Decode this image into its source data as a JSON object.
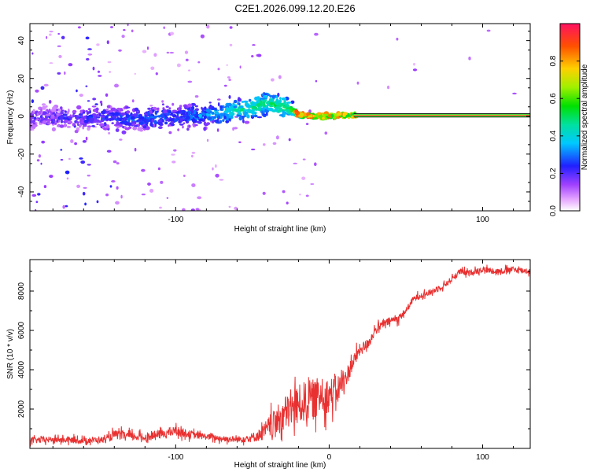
{
  "title": "C2E1.2026.099.12.20.E26",
  "chart_data": [
    {
      "type": "heatmap",
      "xlabel": "Height of straight line (km)",
      "ylabel": "Frequency (Hz)",
      "xlim": [
        -195,
        131
      ],
      "ylim": [
        -50,
        49
      ],
      "xticks": [
        -100,
        0,
        100
      ],
      "xtick_labels": [
        "-100",
        "",
        "100"
      ],
      "yticks": [
        -40,
        -20,
        0,
        20,
        40
      ],
      "ytick_labels": [
        "-40",
        "-20",
        "0",
        "20",
        "40"
      ],
      "colorbar": {
        "label": "Normalized spectral amplitude",
        "range": [
          0,
          1
        ],
        "ticks": [
          0.0,
          0.2,
          0.4,
          0.6,
          0.8
        ],
        "tick_labels": [
          "0.0",
          "0.2",
          "0.4",
          "0.6",
          "0.8"
        ]
      },
      "trace": {
        "description_points_x": [
          -195,
          -160,
          -120,
          -100,
          -80,
          -60,
          -40,
          -25,
          -20,
          -10,
          0,
          10,
          20,
          60,
          100,
          131
        ],
        "center_frequency": [
          -1,
          -1,
          -1,
          0,
          1,
          3,
          7,
          4,
          1,
          0,
          0,
          0.5,
          0.5,
          0.5,
          0.5,
          0.5
        ],
        "spread_hz": [
          4,
          4,
          4,
          4,
          4,
          4,
          4,
          3,
          1,
          1,
          1,
          0.5,
          0.5,
          0.5,
          0.5,
          0.5
        ],
        "amplitude": [
          0.15,
          0.2,
          0.25,
          0.25,
          0.3,
          0.4,
          0.45,
          0.5,
          0.6,
          0.75,
          0.8,
          0.95,
          0.97,
          1.0,
          1.0,
          1.0
        ]
      }
    },
    {
      "type": "line",
      "xlabel": "Height of straight line (km)",
      "ylabel": "SNR (10 * v/v)",
      "xlim": [
        -195,
        131
      ],
      "ylim": [
        0,
        9600
      ],
      "xticks": [
        -100,
        0,
        100
      ],
      "xtick_labels": [
        "-100",
        "0",
        "100"
      ],
      "yticks": [
        2000,
        4000,
        6000,
        8000
      ],
      "ytick_labels": [
        "2000",
        "4000",
        "6000",
        "8000"
      ],
      "series": [
        {
          "name": "SNR",
          "color": "#e83030",
          "x": [
            -195,
            -180,
            -160,
            -145,
            -140,
            -120,
            -105,
            -100,
            -90,
            -80,
            -70,
            -60,
            -50,
            -45,
            -40,
            -35,
            -30,
            -25,
            -20,
            -15,
            -10,
            -5,
            0,
            5,
            10,
            15,
            20,
            25,
            30,
            35,
            40,
            45,
            50,
            55,
            60,
            65,
            70,
            75,
            80,
            85,
            90,
            95,
            100,
            110,
            120,
            131
          ],
          "y": [
            400,
            450,
            400,
            450,
            700,
            550,
            800,
            900,
            700,
            600,
            500,
            450,
            550,
            700,
            1000,
            1300,
            1700,
            2000,
            2200,
            2400,
            2500,
            2700,
            2700,
            3000,
            3400,
            4300,
            5000,
            5300,
            6000,
            6300,
            6500,
            6600,
            7000,
            7600,
            7800,
            7900,
            8100,
            8300,
            8600,
            9000,
            8900,
            9000,
            9100,
            9000,
            9100,
            9000
          ],
          "noise": [
            200,
            200,
            200,
            200,
            300,
            250,
            300,
            300,
            250,
            200,
            200,
            200,
            300,
            400,
            700,
            900,
            1100,
            1200,
            1300,
            1300,
            1300,
            1200,
            1100,
            900,
            700,
            500,
            400,
            350,
            300,
            250,
            250,
            250,
            200,
            200,
            200,
            200,
            200,
            200,
            200,
            200,
            200,
            200,
            200,
            200,
            200,
            200
          ]
        }
      ]
    }
  ]
}
